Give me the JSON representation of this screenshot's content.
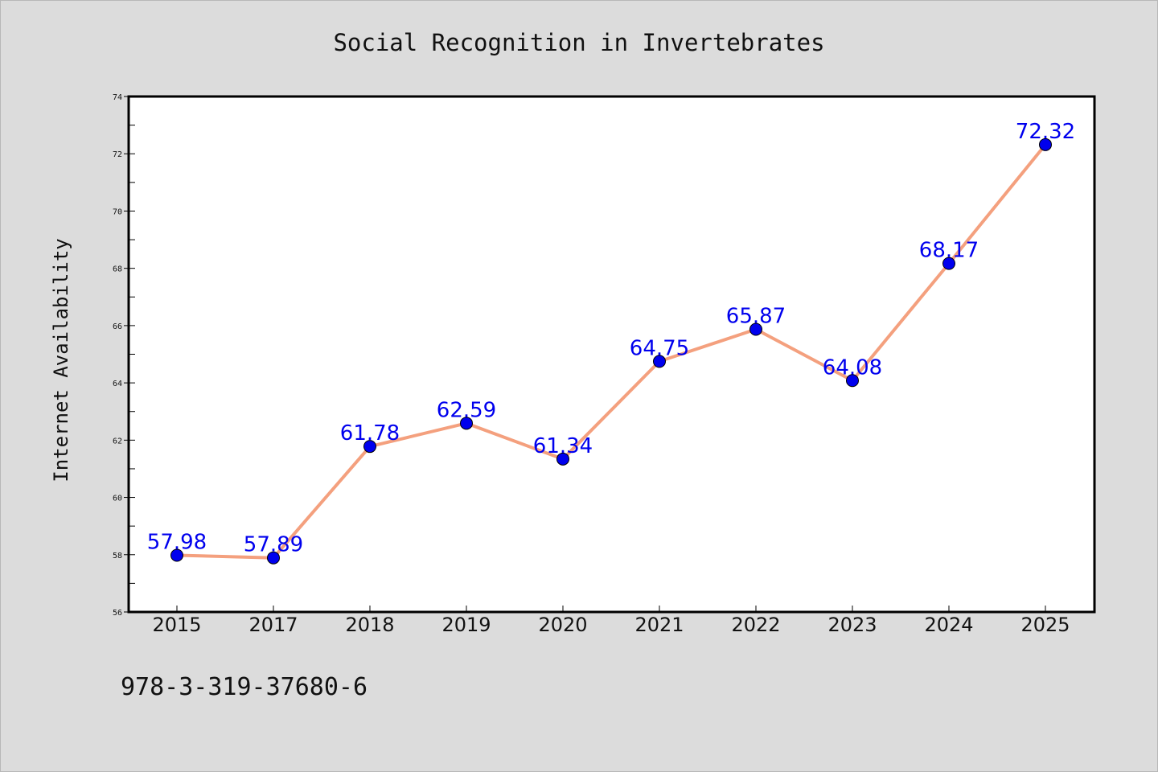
{
  "chart_data": {
    "type": "line",
    "title": "Social Recognition in Invertebrates",
    "xlabel": "",
    "ylabel": "Internet Availability",
    "categories": [
      "2015",
      "2017",
      "2018",
      "2019",
      "2020",
      "2021",
      "2022",
      "2023",
      "2024",
      "2025"
    ],
    "series": [
      {
        "values": [
          57.98,
          57.89,
          61.78,
          62.59,
          61.34,
          64.75,
          65.87,
          64.08,
          68.17,
          72.32
        ],
        "labels": [
          "57.98",
          "57.89",
          "61.78",
          "62.59",
          "61.34",
          "64.75",
          "65.87",
          "64.08",
          "68.17",
          "72.32"
        ]
      }
    ],
    "ylim": [
      56,
      74
    ],
    "y_ticks": [
      56,
      58,
      60,
      62,
      64,
      66,
      68,
      70,
      72,
      74
    ],
    "y_minor_step": 1,
    "grid": false,
    "legend": "none",
    "colors": {
      "line": "#f4a07e",
      "marker": "#0000ee",
      "data_label": "#0000ee",
      "plot_background": "#ffffff",
      "figure_background": "#dcdcdc",
      "axes": "#000000"
    }
  },
  "footer": {
    "note": "978-3-319-37680-6"
  }
}
